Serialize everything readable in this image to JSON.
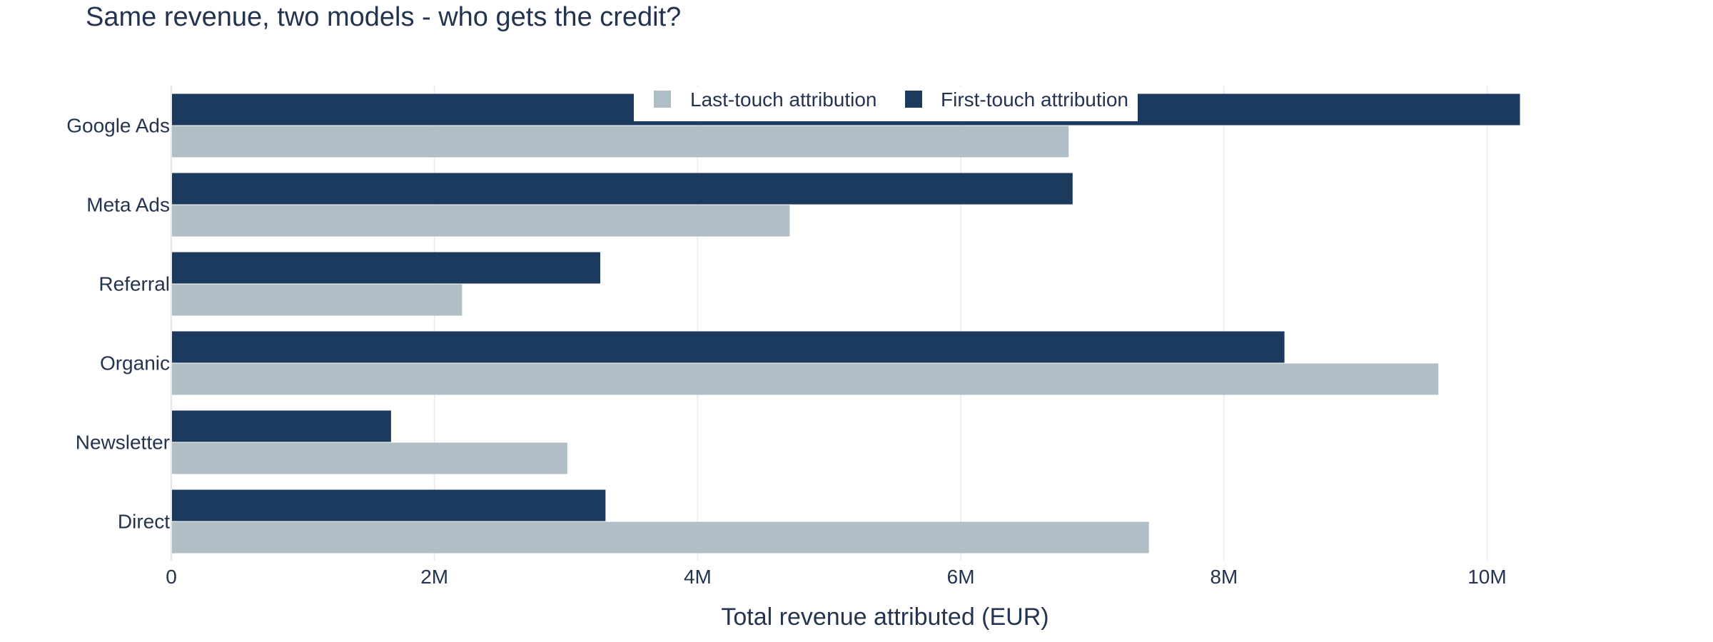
{
  "chart_data": {
    "type": "bar",
    "orientation": "horizontal",
    "title": "Same revenue, two models - who gets the credit?",
    "xlabel": "Total revenue attributed (EUR)",
    "ylabel": "",
    "xlim": [
      0,
      11500000
    ],
    "xticks": [
      0,
      2000000,
      4000000,
      6000000,
      8000000,
      10000000
    ],
    "xtick_labels": [
      "0",
      "2M",
      "4M",
      "6M",
      "8M",
      "10M"
    ],
    "grid": true,
    "legend_position": "top-center",
    "categories": [
      "Google Ads",
      "Meta Ads",
      "Referral",
      "Organic",
      "Newsletter",
      "Direct"
    ],
    "series": [
      {
        "name": "Last-touch attribution",
        "color": "#b0bec5",
        "values": [
          6820000,
          4700000,
          2210000,
          9630000,
          3010000,
          7430000
        ]
      },
      {
        "name": "First-touch attribution",
        "color": "#1c3a5e",
        "values": [
          10250000,
          6850000,
          3260000,
          8460000,
          1670000,
          3300000
        ]
      }
    ]
  }
}
